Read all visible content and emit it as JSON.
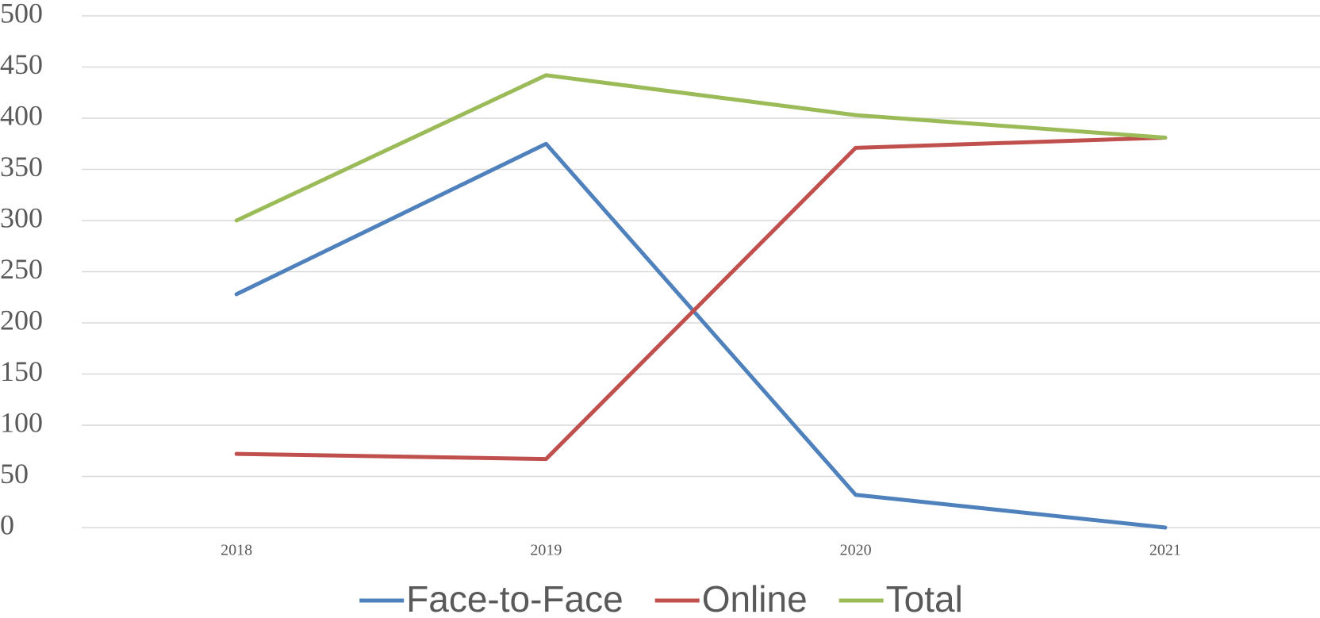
{
  "chart_data": {
    "type": "line",
    "categories": [
      "2018",
      "2019",
      "2020",
      "2021"
    ],
    "series": [
      {
        "name": "Face-to-Face",
        "color": "#4f81bd",
        "values": [
          228,
          375,
          32,
          0
        ]
      },
      {
        "name": "Online",
        "color": "#c0504d",
        "values": [
          72,
          67,
          371,
          381
        ]
      },
      {
        "name": "Total",
        "color": "#9bbb59",
        "values": [
          300,
          442,
          403,
          381
        ]
      }
    ],
    "ylim": [
      0,
      500
    ],
    "yticks": [
      0,
      50,
      100,
      150,
      200,
      250,
      300,
      350,
      400,
      450,
      500
    ],
    "grid": true,
    "legend": "bottom"
  }
}
